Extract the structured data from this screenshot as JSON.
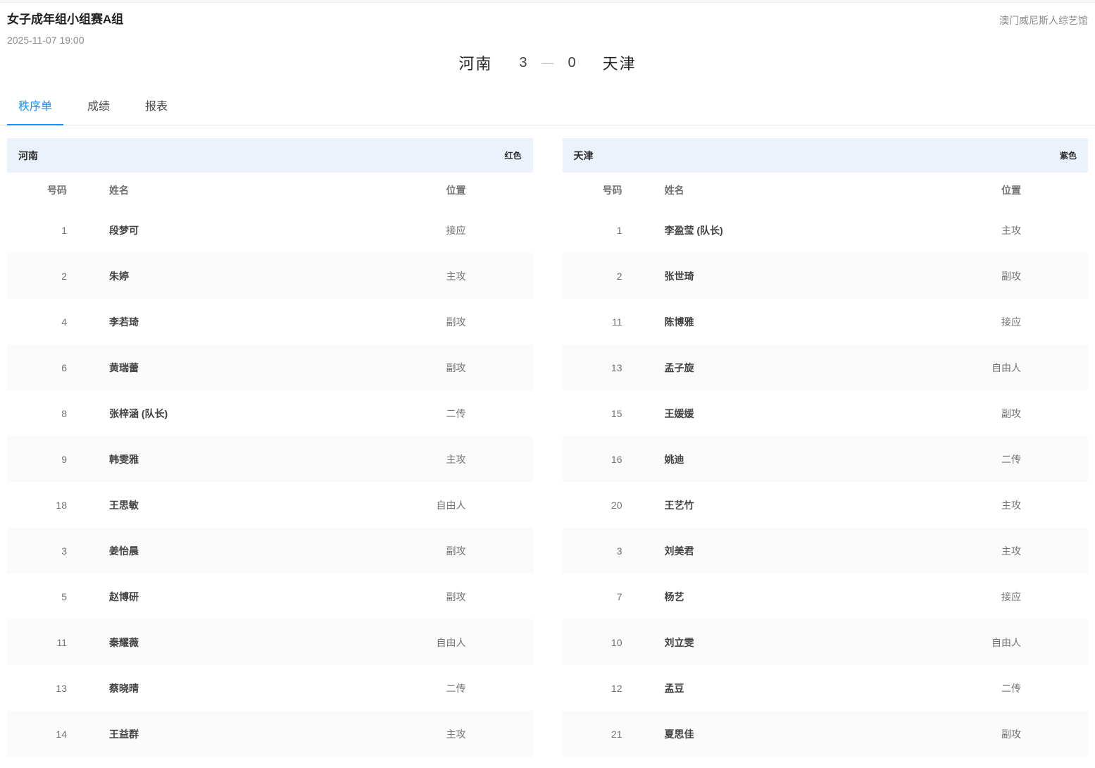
{
  "page": {
    "title": "女子成年组小组赛A组",
    "datetime": "2025-11-07 19:00",
    "venue": "澳门威尼斯人综艺馆"
  },
  "score": {
    "home_team": "河南",
    "home_score": "3",
    "separator": "—",
    "away_score": "0",
    "away_team": "天津"
  },
  "tabs": [
    {
      "label": "秩序单",
      "active": true
    },
    {
      "label": "成绩",
      "active": false
    },
    {
      "label": "报表",
      "active": false
    }
  ],
  "colors": {
    "accent_blue": "#1890ff",
    "roster_header_bg": "#ecf2fc",
    "alt_row_bg": "#fafafa"
  },
  "rosters": [
    {
      "team": "河南",
      "jersey_color": "红色",
      "columns": [
        "号码",
        "姓名",
        "位置"
      ],
      "players": [
        {
          "number": "1",
          "name": "段梦可",
          "position": "接应"
        },
        {
          "number": "2",
          "name": "朱婷",
          "position": "主攻"
        },
        {
          "number": "4",
          "name": "李若琦",
          "position": "副攻"
        },
        {
          "number": "6",
          "name": "黄瑞蕾",
          "position": "副攻"
        },
        {
          "number": "8",
          "name": "张梓涵 (队长)",
          "position": "二传"
        },
        {
          "number": "9",
          "name": "韩雯雅",
          "position": "主攻"
        },
        {
          "number": "18",
          "name": "王思敏",
          "position": "自由人"
        },
        {
          "number": "3",
          "name": "姜怡晨",
          "position": "副攻"
        },
        {
          "number": "5",
          "name": "赵博研",
          "position": "副攻"
        },
        {
          "number": "11",
          "name": "秦耀薇",
          "position": "自由人"
        },
        {
          "number": "13",
          "name": "蔡晓晴",
          "position": "二传"
        },
        {
          "number": "14",
          "name": "王益群",
          "position": "主攻"
        }
      ]
    },
    {
      "team": "天津",
      "jersey_color": "紫色",
      "columns": [
        "号码",
        "姓名",
        "位置"
      ],
      "players": [
        {
          "number": "1",
          "name": "李盈莹 (队长)",
          "position": "主攻"
        },
        {
          "number": "2",
          "name": "张世琦",
          "position": "副攻"
        },
        {
          "number": "11",
          "name": "陈博雅",
          "position": "接应"
        },
        {
          "number": "13",
          "name": "孟子旋",
          "position": "自由人"
        },
        {
          "number": "15",
          "name": "王媛媛",
          "position": "副攻"
        },
        {
          "number": "16",
          "name": "姚迪",
          "position": "二传"
        },
        {
          "number": "20",
          "name": "王艺竹",
          "position": "主攻"
        },
        {
          "number": "3",
          "name": "刘美君",
          "position": "主攻"
        },
        {
          "number": "7",
          "name": "杨艺",
          "position": "接应"
        },
        {
          "number": "10",
          "name": "刘立雯",
          "position": "自由人"
        },
        {
          "number": "12",
          "name": "孟豆",
          "position": "二传"
        },
        {
          "number": "21",
          "name": "夏思佳",
          "position": "副攻"
        }
      ]
    }
  ]
}
